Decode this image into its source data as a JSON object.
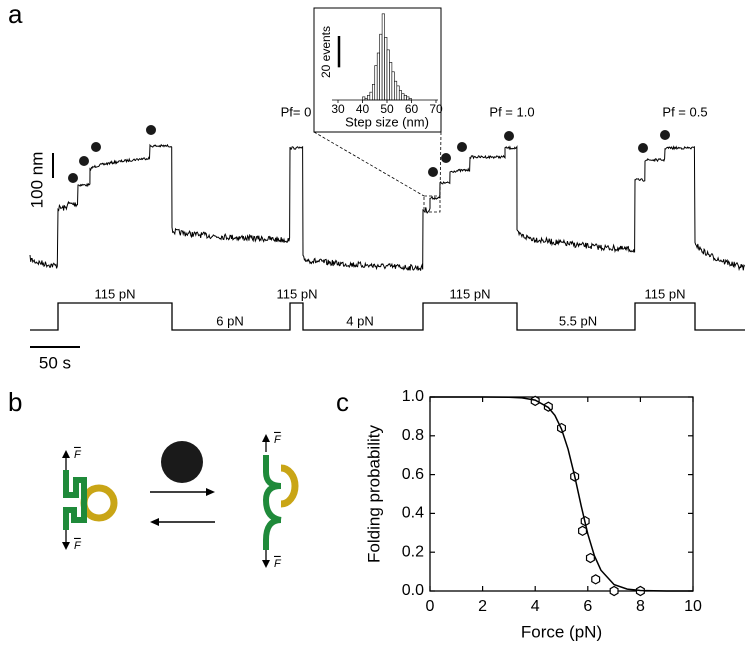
{
  "panel_a": {
    "label": "a",
    "scale_y": "100 nm",
    "scale_x": "50 s",
    "annotations": [
      "Pf= 0",
      "Pf = 1.0",
      "Pf = 0.5"
    ],
    "force_labels": [
      "115 pN",
      "6 pN",
      "115 pN",
      "4 pN",
      "115 pN",
      "5.5 pN",
      "115 pN"
    ]
  },
  "panel_b": {
    "label": "b",
    "force_symbol": "F"
  },
  "panel_c": {
    "label": "c"
  },
  "chart_data": [
    {
      "type": "histogram",
      "xlabel": "Step size (nm)",
      "bins": [
        40,
        41,
        42,
        43,
        44,
        45,
        46,
        47,
        48,
        49,
        50,
        51,
        52,
        53,
        54,
        55,
        56,
        57,
        58,
        59,
        60
      ],
      "counts": [
        2,
        1,
        3,
        5,
        10,
        22,
        30,
        42,
        55,
        40,
        32,
        24,
        18,
        12,
        9,
        6,
        4,
        3,
        2,
        1
      ],
      "xlim": [
        30,
        70
      ],
      "xticks": [
        30,
        40,
        50,
        60,
        70
      ],
      "ylim": [
        0,
        60
      ],
      "scale_bar": {
        "value": 20,
        "label": "20 events"
      },
      "color": "#ffffff"
    },
    {
      "type": "scatter",
      "xlabel": "Force (pN)",
      "ylabel": "Folding probability",
      "xlim": [
        0,
        10
      ],
      "xticks": [
        0,
        2,
        4,
        6,
        8,
        10
      ],
      "ylim": [
        0,
        1
      ],
      "yticks": [
        {
          "value": 0,
          "label": "0.0"
        },
        {
          "value": 0.2,
          "label": "0.2"
        },
        {
          "value": 0.4,
          "label": "0.4"
        },
        {
          "value": 0.6,
          "label": "0.6"
        },
        {
          "value": 0.8,
          "label": "0.8"
        },
        {
          "value": 1,
          "label": "1.0"
        }
      ],
      "series": [
        {
          "color": "#000000",
          "marker": "hexagon",
          "x": [
            4,
            4.5,
            5,
            5.5,
            5.8,
            5.9,
            6.1,
            6.3,
            7,
            8
          ],
          "values": [
            0.98,
            0.95,
            0.84,
            0.59,
            0.31,
            0.36,
            0.17,
            0.06,
            0.0,
            0.0
          ]
        },
        {
          "color": "#000000",
          "style": "line",
          "x": [
            0,
            1,
            2,
            3,
            3.5,
            4,
            4.5,
            4.75,
            5,
            5.25,
            5.5,
            5.75,
            6,
            6.25,
            6.5,
            7,
            7.5,
            8,
            9,
            10
          ],
          "values": [
            1,
            1,
            1,
            0.9987,
            0.9954,
            0.984,
            0.946,
            0.905,
            0.835,
            0.731,
            0.593,
            0.438,
            0.294,
            0.182,
            0.107,
            0.033,
            0.0097,
            0.0028,
            0.0002,
            0
          ]
        }
      ]
    }
  ]
}
